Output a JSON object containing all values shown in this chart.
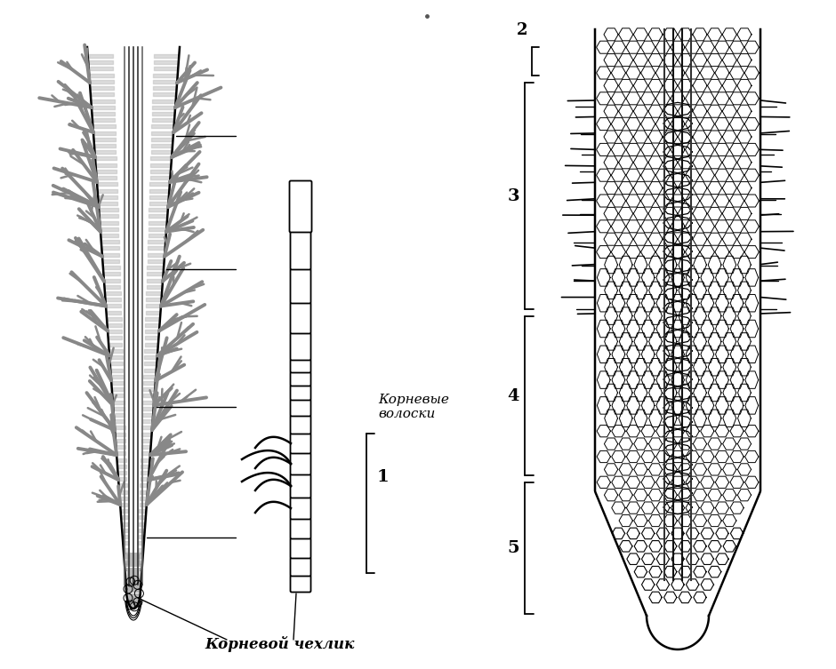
{
  "bg_color": "#ffffff",
  "line_color": "#000000",
  "gray_color": "#aaaaaa",
  "light_gray": "#cccccc",
  "label_1": "1",
  "label_2": "2",
  "label_3": "3",
  "label_4": "4",
  "label_5": "5",
  "text_root_hairs": "Корневые\nволоски",
  "text_root_cap": "Корневой чехлик",
  "figsize": [
    9.4,
    7.53
  ],
  "dpi": 100
}
